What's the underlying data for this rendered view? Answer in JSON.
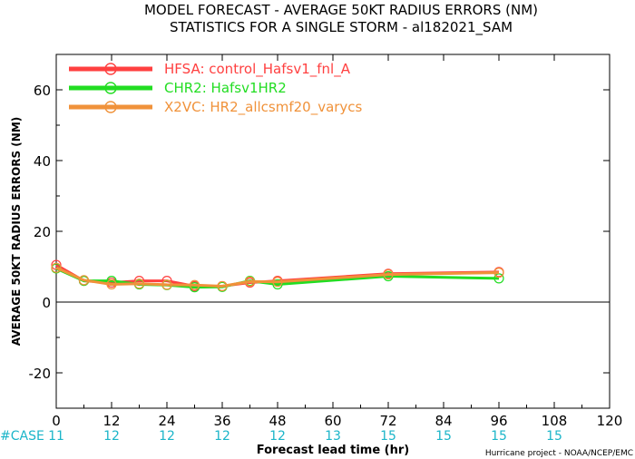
{
  "title_line1": "MODEL FORECAST - AVERAGE 50KT RADIUS ERRORS (NM)",
  "title_line2": "STATISTICS FOR A SINGLE STORM - al182021_SAM",
  "case_label": "#CASE",
  "credit": "Hurricane project - NOAA/NCEP/EMC",
  "case_counts": [
    {
      "x": 0,
      "n": "11"
    },
    {
      "x": 12,
      "n": "12"
    },
    {
      "x": 24,
      "n": "12"
    },
    {
      "x": 36,
      "n": "12"
    },
    {
      "x": 48,
      "n": "12"
    },
    {
      "x": 60,
      "n": "13"
    },
    {
      "x": 72,
      "n": "15"
    },
    {
      "x": 84,
      "n": "15"
    },
    {
      "x": 96,
      "n": "15"
    },
    {
      "x": 108,
      "n": "15"
    }
  ],
  "chart_data": {
    "type": "line",
    "xlabel": "Forecast lead time (hr)",
    "ylabel": "AVERAGE 50KT RADIUS ERRORS (NM)",
    "xlim": [
      0,
      120
    ],
    "ylim": [
      -30,
      70
    ],
    "xticks": [
      0,
      12,
      24,
      36,
      48,
      60,
      72,
      84,
      96,
      108,
      120
    ],
    "yticks": [
      -20,
      0,
      20,
      40,
      60
    ],
    "zero_line": true,
    "legend_position": "top-left",
    "series": [
      {
        "name": "HFSA: control_Hafsv1_fnl_A",
        "color": "#ff4040",
        "x": [
          0,
          6,
          12,
          18,
          24,
          30,
          36,
          42,
          48,
          72,
          96
        ],
        "y": [
          10.5,
          6.0,
          5.5,
          6.0,
          6.0,
          4.5,
          4.5,
          5.5,
          6.0,
          8.0,
          8.5
        ]
      },
      {
        "name": "CHR2: Hafsv1HR2",
        "color": "#22dd22",
        "x": [
          0,
          6,
          12,
          18,
          24,
          30,
          36,
          42,
          48,
          72,
          96
        ],
        "y": [
          9.5,
          6.0,
          6.0,
          5.0,
          4.8,
          4.2,
          4.3,
          6.0,
          5.0,
          7.3,
          6.7
        ]
      },
      {
        "name": "X2VC: HR2_allcsmf20_varycs",
        "color": "#f0923a",
        "x": [
          0,
          6,
          12,
          18,
          24,
          30,
          36,
          42,
          48,
          72,
          96
        ],
        "y": [
          9.7,
          6.2,
          5.0,
          5.2,
          4.9,
          4.8,
          4.5,
          5.8,
          5.7,
          7.8,
          8.3
        ]
      }
    ]
  }
}
